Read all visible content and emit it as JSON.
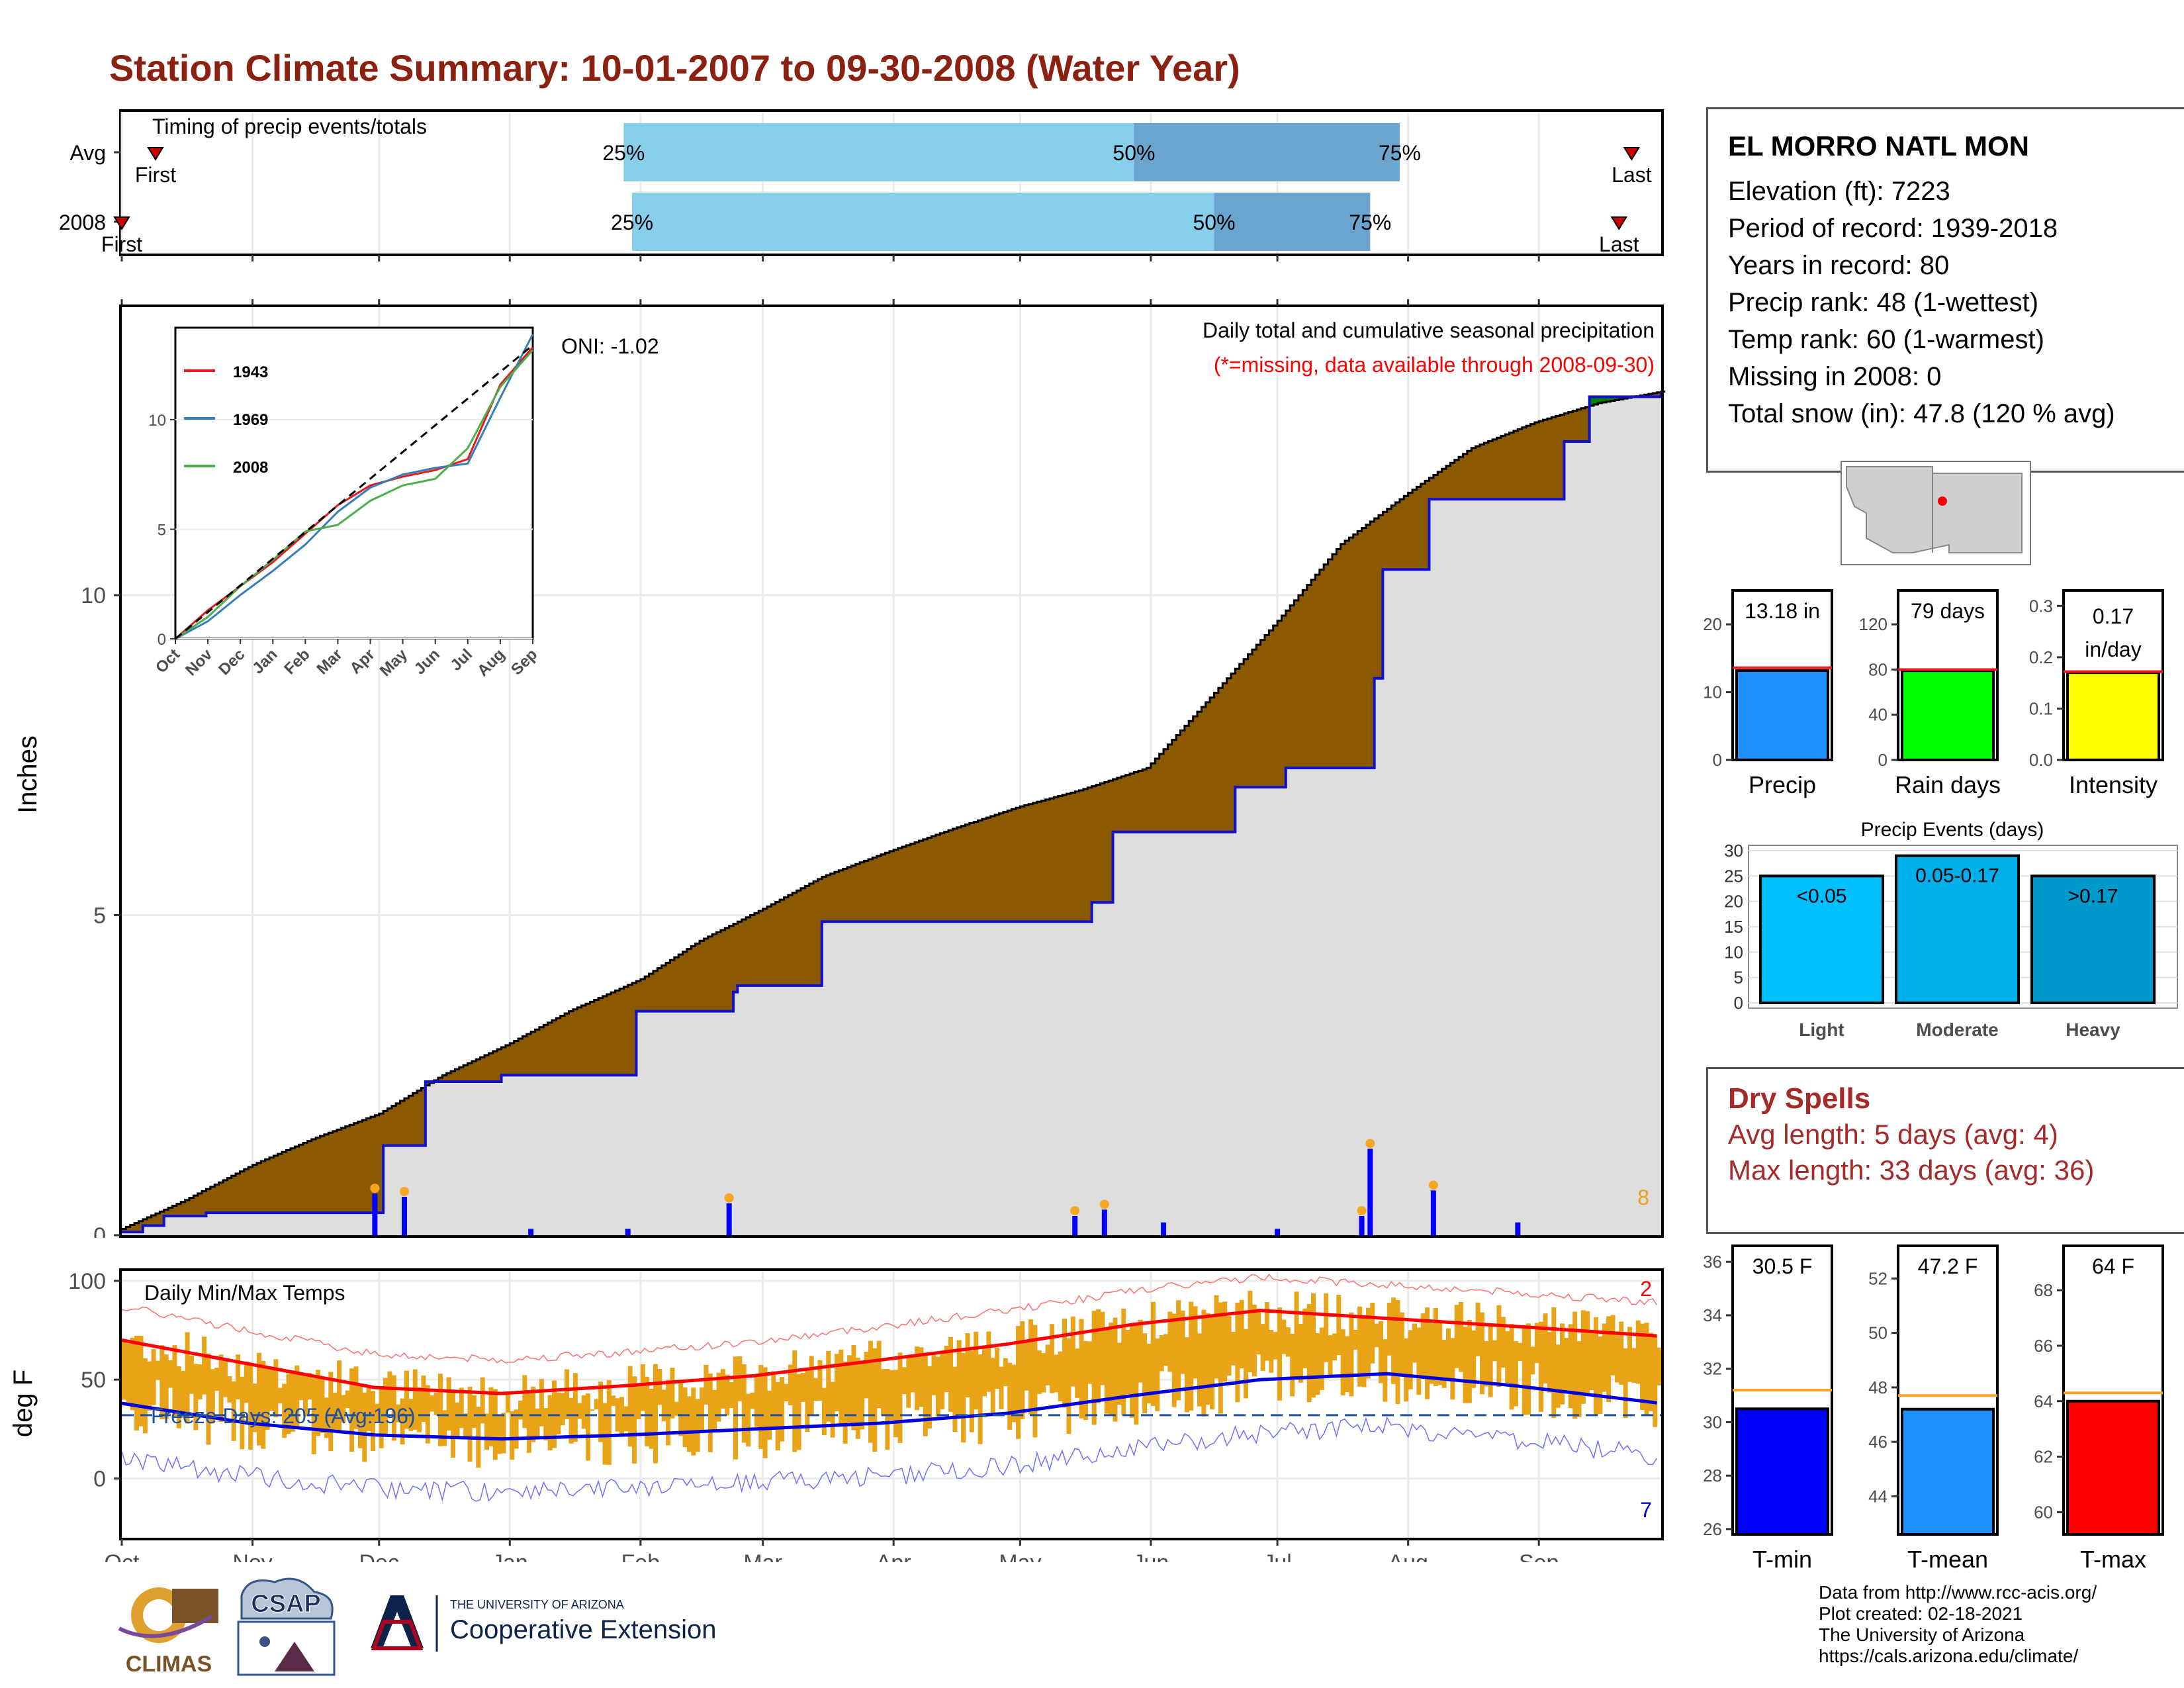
{
  "title": "Station Climate Summary: 10-01-2007 to 09-30-2008 (Water Year)",
  "timing_panel": {
    "title": "Timing of precip events/totals",
    "rows": [
      {
        "label": "Avg",
        "first": "First",
        "last": "Last",
        "p25": "25%",
        "p50": "50%",
        "p75": "75%"
      },
      {
        "label": "2008",
        "first": "First",
        "last": "Last",
        "p25": "25%",
        "p50": "50%",
        "p75": "75%"
      }
    ]
  },
  "precip_panel": {
    "ylabel": "Inches",
    "oni": "ONI: -1.02",
    "subtitle": "Daily total and cumulative seasonal precipitation",
    "missing_note": "(*=missing, data available through 2008-09-30)",
    "count_label": "8",
    "inset_legend": [
      "1943",
      "1969",
      "2008"
    ]
  },
  "temp_panel": {
    "ylabel": "deg F",
    "title": "Daily Min/Max Temps",
    "freeze_days": "Freeze Days: 205 (Avg:196)",
    "high_count": "2",
    "low_count": "7"
  },
  "station": {
    "name": "EL MORRO NATL MON",
    "lines": [
      "Elevation (ft): 7223",
      "Period of record: 1939-2018",
      "Years in record: 80",
      "Precip rank: 48 (1-wettest)",
      "Temp rank: 60 (1-warmest)",
      "Missing in 2008: 0",
      "Total snow (in): 47.8 (120 % avg)"
    ]
  },
  "dry_spells": {
    "title": "Dry Spells",
    "avg": "Avg length: 5 days (avg: 4)",
    "max": "Max length: 33 days (avg: 36)"
  },
  "credits": {
    "line1": "Data from http://www.rcc-acis.org/",
    "line2": "Plot created: 02-18-2021",
    "line3": "The University of Arizona",
    "line4": "https://cals.arizona.edu/climate/"
  },
  "logos": {
    "climas": "CLIMAS",
    "csap": "CSAP",
    "ua_small": "THE UNIVERSITY OF ARIZONA",
    "ua_big": "Cooperative Extension"
  },
  "colors": {
    "title": "#8b2211",
    "brown": "#8b5a00",
    "green": "#008000",
    "gray": "#dedede",
    "blue": "#0000ff",
    "orange": "#e8a317",
    "light_blue": "#87ceeb",
    "mid_blue": "#6ba5cf"
  },
  "chart_data": [
    {
      "type": "bar",
      "name": "timing",
      "categories": [
        "Avg",
        "2008"
      ],
      "x_ticks": [
        "Oct",
        "Nov",
        "Dec",
        "Jan",
        "Feb",
        "Mar",
        "Apr",
        "May",
        "Jun",
        "Jul",
        "Aug",
        "Sep"
      ],
      "series": [
        {
          "row": "Avg",
          "first_day": 8,
          "p25_day": 119,
          "p50_day": 240,
          "p75_day": 303,
          "last_day": 358
        },
        {
          "row": "2008",
          "first_day": 0,
          "p25_day": 121,
          "p50_day": 259,
          "p75_day": 296,
          "last_day": 355
        }
      ]
    },
    {
      "type": "area",
      "name": "cumulative_precip",
      "ylabel": "Inches",
      "ylim": [
        0,
        14.5
      ],
      "yticks": [
        0,
        5,
        10
      ],
      "x_ticks": [
        "Oct",
        "Nov",
        "Dec",
        "Jan",
        "Feb",
        "Mar",
        "Apr",
        "May",
        "Jun",
        "Jul",
        "Aug",
        "Sep"
      ],
      "avg_cumulative": {
        "x": [
          0,
          15,
          31,
          45,
          61,
          76,
          92,
          106,
          123,
          137,
          152,
          166,
          182,
          197,
          213,
          227,
          243,
          258,
          274,
          289,
          305,
          320,
          335,
          350,
          365
        ],
        "y": [
          0.1,
          0.55,
          1.1,
          1.5,
          1.9,
          2.5,
          3.0,
          3.5,
          4.0,
          4.6,
          5.1,
          5.6,
          6.0,
          6.35,
          6.7,
          6.95,
          7.3,
          8.4,
          9.6,
          10.8,
          11.6,
          12.3,
          12.7,
          13.0,
          13.18
        ]
      },
      "year_cumulative": {
        "x": [
          0,
          5,
          10,
          20,
          60,
          62,
          70,
          72,
          82,
          90,
          95,
          120,
          122,
          142,
          145,
          146,
          165,
          166,
          226,
          230,
          234,
          235,
          263,
          264,
          275,
          276,
          296,
          297,
          299,
          309,
          310,
          340,
          342,
          347,
          348,
          365
        ],
        "y": [
          0.05,
          0.15,
          0.3,
          0.35,
          0.35,
          1.4,
          1.4,
          2.4,
          2.4,
          2.5,
          2.5,
          2.5,
          3.5,
          3.5,
          3.8,
          3.9,
          3.9,
          4.9,
          4.9,
          5.2,
          5.2,
          6.3,
          6.3,
          7.0,
          7.0,
          7.3,
          7.3,
          8.7,
          10.4,
          10.4,
          11.5,
          11.5,
          12.4,
          12.4,
          13.1,
          13.18
        ]
      },
      "daily_bars": [
        {
          "day": 60,
          "value": 0.65
        },
        {
          "day": 67,
          "value": 0.6
        },
        {
          "day": 97,
          "value": 0.1
        },
        {
          "day": 120,
          "value": 0.1
        },
        {
          "day": 144,
          "value": 0.5
        },
        {
          "day": 226,
          "value": 0.3
        },
        {
          "day": 233,
          "value": 0.4
        },
        {
          "day": 247,
          "value": 0.2
        },
        {
          "day": 274,
          "value": 0.1
        },
        {
          "day": 294,
          "value": 0.3
        },
        {
          "day": 296,
          "value": 1.35
        },
        {
          "day": 311,
          "value": 0.7
        },
        {
          "day": 331,
          "value": 0.2
        }
      ],
      "inset": {
        "yticks": [
          0,
          5,
          10
        ],
        "x_ticks": [
          "Oct",
          "Nov",
          "Dec",
          "Jan",
          "Feb",
          "Mar",
          "Apr",
          "May",
          "Jun",
          "Jul",
          "Aug",
          "Sep"
        ],
        "series": [
          {
            "name": "1943",
            "values": [
              0,
              1.3,
              2.4,
              3.5,
              4.8,
              6.1,
              7.0,
              7.4,
              7.7,
              8.2,
              11.6,
              13.3
            ]
          },
          {
            "name": "1969",
            "values": [
              0,
              0.8,
              2.0,
              3.1,
              4.3,
              5.8,
              6.9,
              7.5,
              7.8,
              8.0,
              11.0,
              13.9
            ]
          },
          {
            "name": "2008",
            "values": [
              0,
              1.0,
              2.4,
              3.6,
              4.9,
              5.2,
              6.3,
              7.0,
              7.3,
              8.7,
              11.5,
              13.18
            ]
          }
        ]
      }
    },
    {
      "type": "bar",
      "name": "daily_temps",
      "ylabel": "deg F",
      "ylim": [
        -30,
        105
      ],
      "yticks": [
        0,
        50,
        100
      ],
      "x_ticks": [
        "Oct",
        "Nov",
        "Dec",
        "Jan",
        "Feb",
        "Mar",
        "Apr",
        "May",
        "Jun",
        "Jul",
        "Aug",
        "Sep"
      ],
      "avg_max": {
        "x": [
          0,
          30,
          60,
          90,
          120,
          150,
          180,
          210,
          240,
          270,
          300,
          330,
          365
        ],
        "y": [
          70,
          58,
          46,
          43,
          47,
          52,
          60,
          68,
          78,
          85,
          81,
          77,
          72
        ]
      },
      "avg_min": {
        "x": [
          0,
          30,
          60,
          90,
          120,
          150,
          180,
          210,
          240,
          270,
          300,
          330,
          365
        ],
        "y": [
          38,
          28,
          22,
          20,
          22,
          25,
          28,
          33,
          42,
          50,
          53,
          47,
          38
        ]
      },
      "freeze_line": 32
    },
    {
      "type": "bar",
      "name": "precip_totals",
      "bars": [
        {
          "label": "Precip",
          "value": 13.18,
          "avg": 13.6,
          "value_label": "13.18 in",
          "ylim": [
            0,
            25
          ],
          "yticks": [
            0,
            10,
            20
          ],
          "color": "#1e90ff"
        },
        {
          "label": "Rain days",
          "value": 79,
          "avg": 80,
          "value_label": "79 days",
          "ylim": [
            0,
            150
          ],
          "yticks": [
            0,
            40,
            80,
            120
          ],
          "color": "#00ff00"
        },
        {
          "label": "Intensity",
          "value": 0.17,
          "avg": 0.172,
          "value_label": "0.17 in/day",
          "ylim": [
            0,
            0.33
          ],
          "yticks": [
            0.0,
            0.1,
            0.2,
            0.3
          ],
          "color": "#ffff00"
        }
      ]
    },
    {
      "type": "bar",
      "name": "precip_events",
      "title": "Precip Events (days)",
      "categories": [
        "Light",
        "Moderate",
        "Heavy"
      ],
      "values": [
        25,
        29,
        25
      ],
      "bar_labels": [
        "<0.05",
        "0.05-0.17",
        ">0.17"
      ],
      "ylim": [
        0,
        30
      ],
      "yticks": [
        0,
        5,
        10,
        15,
        20,
        25,
        30
      ]
    },
    {
      "type": "bar",
      "name": "temp_means",
      "bars": [
        {
          "label": "T-min",
          "value": 30.5,
          "avg": 31.2,
          "value_label": "30.5 F",
          "ylim": [
            25.8,
            36.6
          ],
          "yticks": [
            26,
            28,
            30,
            32,
            34,
            36
          ],
          "color": "#0000ff"
        },
        {
          "label": "T-mean",
          "value": 47.2,
          "avg": 47.7,
          "value_label": "47.2 F",
          "ylim": [
            42.6,
            53.2
          ],
          "yticks": [
            44,
            46,
            48,
            50,
            52
          ],
          "color": "#1e90ff"
        },
        {
          "label": "T-max",
          "value": 64,
          "avg": 64.3,
          "value_label": "64 F",
          "ylim": [
            59.2,
            69.6
          ],
          "yticks": [
            60,
            62,
            64,
            66,
            68
          ],
          "color": "#ff0000"
        }
      ]
    }
  ]
}
